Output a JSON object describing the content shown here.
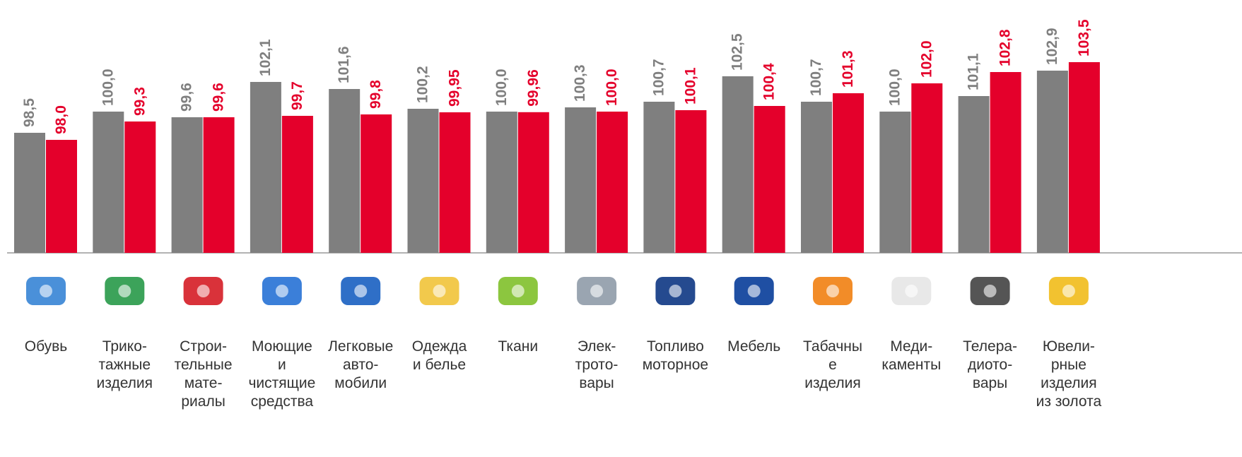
{
  "chart_data": {
    "type": "bar",
    "categories": [
      "Обувь",
      "Трико-\nтажные\nизделия",
      "Строи-\nтельные\nмате-\nриалы",
      "Моющие\nи\nчистящие\nсредства",
      "Легковые\nавто-\nмобили",
      "Одежда\nи белье",
      "Ткани",
      "Элек-\nтрото-\nвары",
      "Топливо\nмоторное",
      "Мебель",
      "Табачны\nе\nизделия",
      "Меди-\nкаменты",
      "Телера-\nдиото-\nвары",
      "Ювели-\nрные\nизделия\nиз золота"
    ],
    "series": [
      {
        "color": "#7f7f7f",
        "label_color": "#7f7f7f",
        "values": [
          98.5,
          100.0,
          99.6,
          102.1,
          101.6,
          100.2,
          100.0,
          100.3,
          100.7,
          102.5,
          100.7,
          100.0,
          101.1,
          102.9
        ],
        "value_labels": [
          "98,5",
          "100,0",
          "99,6",
          "102,1",
          "101,6",
          "100,2",
          "100,0",
          "100,3",
          "100,7",
          "102,5",
          "100,7",
          "100,0",
          "101,1",
          "102,9"
        ]
      },
      {
        "color": "#e4002b",
        "label_color": "#e4002b",
        "values": [
          98.0,
          99.3,
          99.6,
          99.7,
          99.8,
          99.95,
          99.96,
          100.0,
          100.1,
          100.4,
          101.3,
          102.0,
          102.8,
          103.5
        ],
        "value_labels": [
          "98,0",
          "99,3",
          "99,6",
          "99,7",
          "99,8",
          "99,95",
          "99,96",
          "100,0",
          "100,1",
          "100,4",
          "101,3",
          "102,0",
          "102,8",
          "103,5"
        ]
      }
    ],
    "ylim": [
      90,
      107
    ]
  }
}
